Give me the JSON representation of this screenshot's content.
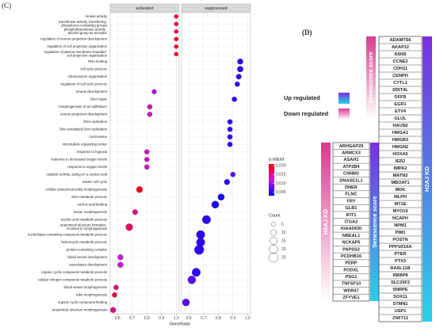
{
  "chart_data": {
    "type": "dot",
    "panel_label": "(C)",
    "x_label": "GeneRatio",
    "categories": [
      "kinase activity",
      "transferase activity, transferring phosphorus-containing groups",
      "phosphotransferase activity, alcohol group as acceptor",
      "regulation of neuron projection development",
      "regulation of cell projection organization",
      "regulation of plasma membrane bounded cell projection organization",
      "RNA binding",
      "cell cycle process",
      "chromosome organization",
      "regulation of cell cycle process",
      "neuron development",
      "DNA repair",
      "morphogenesis of an epithelium",
      "neuron projection development",
      "DNA replication",
      "DNA-templated DNA replication",
      "centrosome",
      "microtubule organizing center",
      "response to hypoxia",
      "response to decreased oxygen levels",
      "response to oxygen levels",
      "catalytic activity, acting on a nucleic acid",
      "mitotic cell cycle",
      "cellular anatomical entity morphogenesis",
      "DNA metabolic process",
      "nucleic acid binding",
      "tissue morphogenesis",
      "nucleic acid metabolic process",
      "anatomical structure formation involved in morphogenesis",
      "nucleobase-containing compound metabolic process",
      "heterocycle metabolic process",
      "protein-containing complex",
      "blood vessel development",
      "vasculature development",
      "organic cyclic compound metabolic process",
      "cellular nitrogen compound metabolic process",
      "blood vessel morphogenesis",
      "tube morphogenesis",
      "organic cyclic compound binding",
      "anatomical structure morphogenesis"
    ],
    "series": [
      {
        "name": "activated",
        "values": [
          1.0,
          1.0,
          1.0,
          1.0,
          1.0,
          1.0,
          null,
          null,
          null,
          null,
          0.85,
          null,
          0.82,
          0.82,
          null,
          null,
          null,
          null,
          0.8,
          0.8,
          0.8,
          null,
          null,
          0.75,
          null,
          null,
          0.72,
          null,
          0.68,
          null,
          null,
          null,
          0.62,
          0.62,
          null,
          null,
          0.59,
          0.58,
          null,
          0.57
        ],
        "count": [
          5,
          5,
          5,
          5,
          5,
          5,
          null,
          null,
          null,
          null,
          6,
          null,
          7,
          7,
          null,
          null,
          null,
          null,
          7,
          7,
          7,
          null,
          null,
          11,
          null,
          null,
          8,
          null,
          14,
          null,
          null,
          null,
          9,
          9,
          null,
          null,
          7,
          7,
          null,
          9
        ],
        "p_adjust": [
          0.019,
          0.018,
          0.018,
          0.019,
          0.019,
          0.019,
          null,
          null,
          null,
          null,
          0.011,
          null,
          0.013,
          0.013,
          null,
          null,
          null,
          null,
          0.013,
          0.013,
          0.013,
          null,
          null,
          0.02,
          null,
          null,
          0.015,
          null,
          0.017,
          null,
          null,
          null,
          0.012,
          0.012,
          null,
          null,
          0.016,
          0.018,
          null,
          0.015
        ]
      },
      {
        "name": "suppressed",
        "values": [
          null,
          null,
          null,
          null,
          null,
          null,
          0.95,
          0.95,
          0.94,
          0.93,
          null,
          0.91,
          null,
          null,
          0.88,
          0.88,
          0.88,
          0.88,
          null,
          null,
          null,
          0.9,
          0.86,
          null,
          0.82,
          0.78,
          null,
          0.72,
          null,
          0.68,
          0.68,
          0.67,
          null,
          null,
          0.65,
          0.62,
          null,
          null,
          0.58,
          null
        ],
        "count": [
          null,
          null,
          null,
          null,
          null,
          null,
          9,
          10,
          8,
          7,
          null,
          7,
          null,
          null,
          7,
          7,
          7,
          7,
          null,
          null,
          null,
          7,
          9,
          null,
          12,
          15,
          null,
          20,
          null,
          20,
          20,
          25,
          null,
          null,
          20,
          18,
          null,
          null,
          15,
          null
        ],
        "p_adjust": [
          null,
          null,
          null,
          null,
          null,
          null,
          0.005,
          0.005,
          0.005,
          0.005,
          null,
          0.005,
          null,
          null,
          0.005,
          0.005,
          0.005,
          0.005,
          null,
          null,
          null,
          0.007,
          0.005,
          null,
          0.004,
          0.004,
          null,
          0.005,
          null,
          0.005,
          0.005,
          0.005,
          null,
          null,
          0.005,
          0.007,
          null,
          null,
          0.007,
          null
        ]
      }
    ],
    "xlim": [
      0.55,
      1.02
    ],
    "xticks": [
      0.6,
      0.7,
      0.8,
      0.9,
      {
        "value": 1,
        "label": "1.0"
      }
    ],
    "grid": true,
    "color_scale": {
      "title": "p.adjust",
      "low_color": "#0000ff",
      "mid_color": "#c21ad6",
      "high_color": "#ff0000",
      "clim": [
        0.003,
        0.021
      ],
      "ticks": [
        {
          "value": 0.02,
          "label": "0.020"
        },
        0.015,
        {
          "value": 0.01,
          "label": "0.010"
        },
        0.005
      ]
    },
    "size_scale": {
      "title": "Count",
      "values": [
        5,
        10,
        15,
        20,
        25
      ]
    }
  },
  "panel_d": {
    "panel_label": "(D)",
    "legend": [
      {
        "label": "Up regulated",
        "colors": [
          "#7a2fe0",
          "#2ad1e8"
        ]
      },
      {
        "label": "Down regulated",
        "colors": [
          "#d63c8f",
          "#ffffff"
        ]
      }
    ],
    "lists": [
      {
        "left_label": "H2AJ KD",
        "right_label": "Senescence score",
        "genes": [
          "ARHGAP29",
          "ARMCX3",
          "ASAH1",
          "ATP2B4",
          "CNNM2",
          "DNASE1L1",
          "DNER",
          "FLNC",
          "FRY",
          "GLB1",
          "IFIT1",
          "ITGA2",
          "KIAA0930",
          "NBEAL1",
          "NCKAP5",
          "PAPSS2",
          "PCDHB16",
          "PERP",
          "PODXL",
          "PSG1",
          "TNFSF10",
          "WDR47",
          "ZFYVE1"
        ]
      },
      {
        "left_label": "Senescence score",
        "right_label": "H2AJ KD",
        "genes": [
          "ADAMTS6",
          "AKAP12",
          "ASNS",
          "CCNE2",
          "CDH11",
          "CENPH",
          "CYTL1",
          "DDIT4L",
          "DFFB",
          "EGR1",
          "ETV4",
          "GLUL",
          "HAUS6",
          "HMGA1",
          "HMGB3",
          "HMGN2",
          "HOXA5",
          "IER2",
          "IMPA2",
          "MATN2",
          "MBOAT1",
          "MDK",
          "MLPH",
          "MT1E",
          "MYO19",
          "NCAPH",
          "NPM1",
          "PIM1",
          "POSTN",
          "PPP1R16A",
          "PTER",
          "PTX3",
          "RASL11B",
          "RBBP8",
          "SLC25F2",
          "SNRPE",
          "SOX11",
          "STMN1",
          "USP1",
          "ZNF711"
        ]
      }
    ]
  }
}
